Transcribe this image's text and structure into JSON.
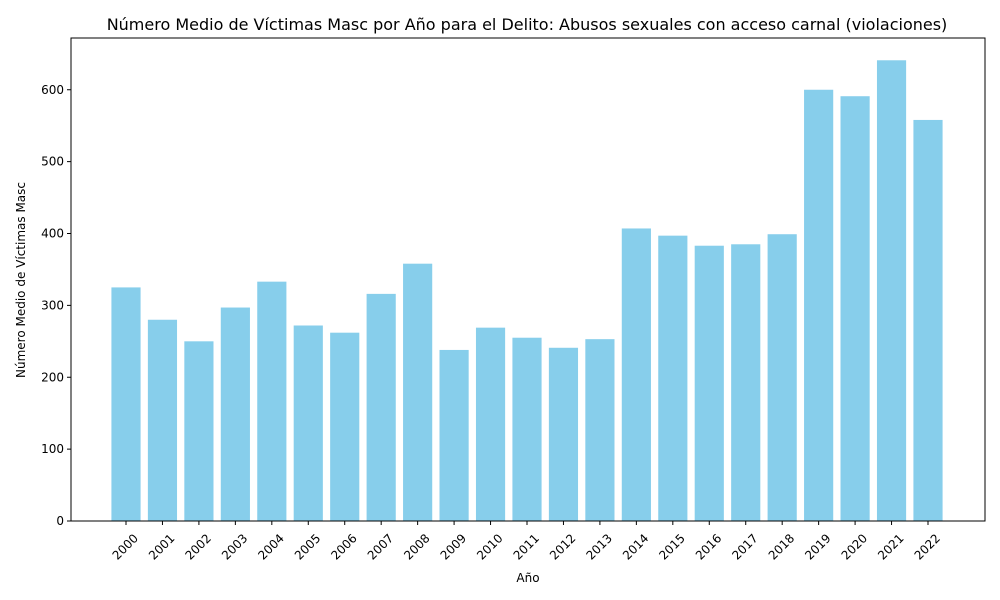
{
  "chart_data": {
    "type": "bar",
    "title": "Número Medio de Víctimas Masc por Año para el Delito: Abusos sexuales con acceso carnal (violaciones)",
    "xlabel": "Año",
    "ylabel": "Número Medio de Víctimas Masc",
    "categories": [
      "2000",
      "2001",
      "2002",
      "2003",
      "2004",
      "2005",
      "2006",
      "2007",
      "2008",
      "2009",
      "2010",
      "2011",
      "2012",
      "2013",
      "2014",
      "2015",
      "2016",
      "2017",
      "2018",
      "2019",
      "2020",
      "2021",
      "2022"
    ],
    "values": [
      325,
      280,
      250,
      297,
      333,
      272,
      262,
      316,
      358,
      238,
      269,
      255,
      241,
      253,
      407,
      397,
      383,
      385,
      399,
      600,
      591,
      641,
      558
    ],
    "ylim": [
      0,
      672
    ],
    "yticks": [
      0,
      100,
      200,
      300,
      400,
      500,
      600
    ],
    "bar_color": "#87CEEB",
    "grid": false,
    "legend": "none"
  }
}
